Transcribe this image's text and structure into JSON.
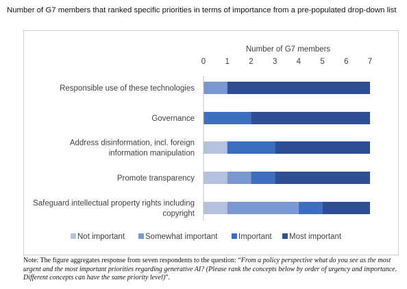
{
  "title": "Number of G7 members that ranked specific priorities in terms of importance from a pre-populated drop-down list",
  "note": {
    "prefix": "Note: The figure aggregates response from seven respondents to the question: “",
    "question": "From a policy perspective what do you see as the most urgent and the most important priorities regarding generative AI? (Please rank the concepts below by order of urgency and importance. Different concepts can have the same priority level)",
    "suffix": "”."
  },
  "chart_data": {
    "type": "bar",
    "orientation": "horizontal",
    "stacked": true,
    "xlabel": "Number of G7 members",
    "xlim": [
      0,
      7
    ],
    "xticks": [
      "0",
      "1",
      "2",
      "3",
      "4",
      "5",
      "6",
      "7"
    ],
    "categories": [
      [
        "Responsible use of these technologies"
      ],
      [
        "Governance"
      ],
      [
        "Address disinformation, incl. foreign",
        "information manipulation"
      ],
      [
        "Promote transparency"
      ],
      [
        "Safeguard intellectual property rights including",
        "copyright"
      ]
    ],
    "series": [
      {
        "name": "Not important",
        "color": "#b4c2e0",
        "values": [
          0,
          0,
          1,
          1,
          1
        ]
      },
      {
        "name": "Somewhat important",
        "color": "#7b97d2",
        "values": [
          1,
          0,
          0,
          1,
          3
        ]
      },
      {
        "name": "Important",
        "color": "#3e6ec0",
        "values": [
          0,
          2,
          2,
          1,
          1
        ]
      },
      {
        "name": "Most important",
        "color": "#2f4f94",
        "values": [
          6,
          5,
          4,
          4,
          2
        ]
      }
    ],
    "legend_position": "bottom",
    "grid": false
  }
}
